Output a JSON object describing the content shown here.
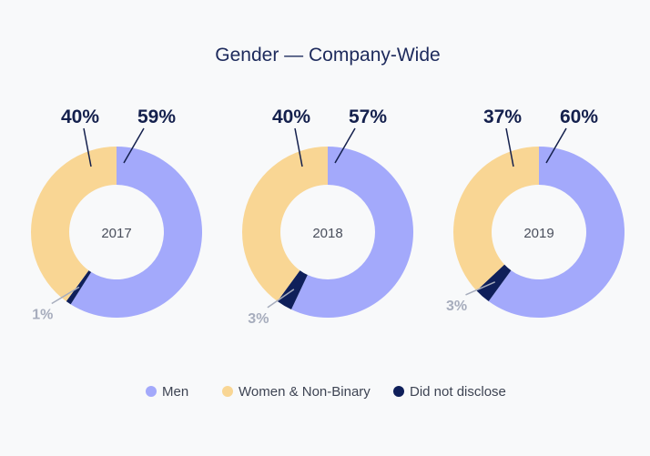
{
  "chart_data": {
    "type": "pie",
    "title": "Gender — Company-Wide",
    "series_names": [
      "Men",
      "Women & Non-Binary",
      "Did not disclose"
    ],
    "colors": {
      "Men": "#a3a9fb",
      "Women & Non-Binary": "#f9d694",
      "Did not disclose": "#0f1f5a",
      "leader": "#14204d",
      "leader_small": "#a7adbd"
    },
    "charts": [
      {
        "year": "2017",
        "values": {
          "Men": 59,
          "Women & Non-Binary": 40,
          "Did not disclose": 1
        },
        "labels": {
          "Men": "59%",
          "Women & Non-Binary": "40%",
          "Did not disclose": "1%"
        }
      },
      {
        "year": "2018",
        "values": {
          "Men": 57,
          "Women & Non-Binary": 40,
          "Did not disclose": 3
        },
        "labels": {
          "Men": "57%",
          "Women & Non-Binary": "40%",
          "Did not disclose": "3%"
        }
      },
      {
        "year": "2019",
        "values": {
          "Men": 60,
          "Women & Non-Binary": 37,
          "Did not disclose": 3
        },
        "labels": {
          "Men": "60%",
          "Women & Non-Binary": "37%",
          "Did not disclose": "3%"
        }
      }
    ],
    "legend": [
      {
        "label": "Men",
        "color": "#a3a9fb"
      },
      {
        "label": "Women & Non-Binary",
        "color": "#f9d694"
      },
      {
        "label": "Did not disclose",
        "color": "#0f1f5a"
      }
    ],
    "legend_position": "bottom"
  }
}
